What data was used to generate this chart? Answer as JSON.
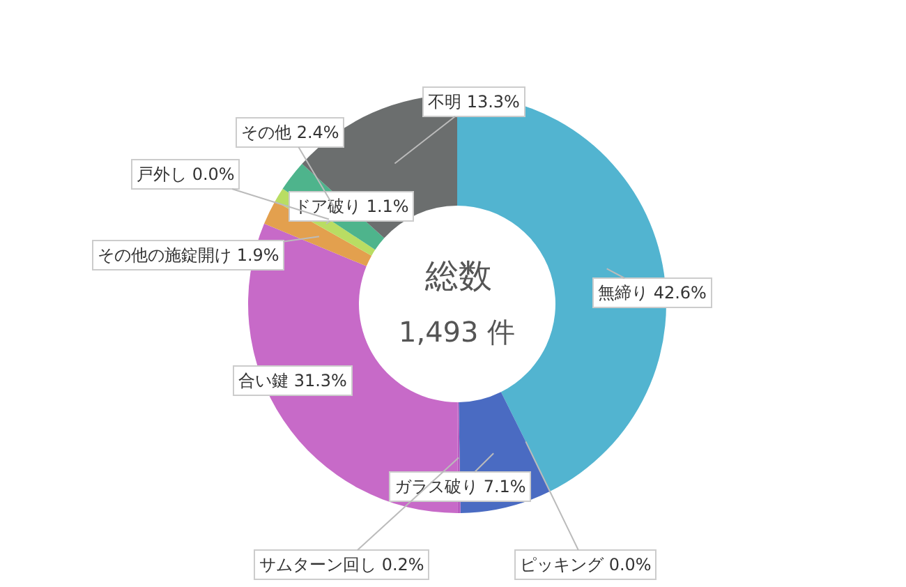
{
  "chart_data": {
    "type": "donut",
    "categories": [
      "無締り",
      "ピッキング",
      "ガラス破り",
      "サムターン回し",
      "合い鍵",
      "その他の施錠開け",
      "ドア破り",
      "戸外し",
      "その他",
      "不明"
    ],
    "values": [
      42.6,
      0.0,
      7.1,
      0.2,
      31.3,
      1.9,
      1.1,
      0.0,
      2.4,
      13.3
    ],
    "value_labels": [
      "42.6%",
      "0.0%",
      "7.1%",
      "0.2%",
      "31.3%",
      "1.9%",
      "1.1%",
      "0.0%",
      "2.4%",
      "13.3%"
    ],
    "colors": [
      "#52b4d0",
      "#3f78c4",
      "#4a6bc2",
      "#b85cc0",
      "#c76ac8",
      "#e3a04e",
      "#b9dd63",
      "#e8b040",
      "#4eb48c",
      "#6b6e6e"
    ],
    "annotations": [
      "総数",
      "1,493 件"
    ],
    "legend": false
  }
}
